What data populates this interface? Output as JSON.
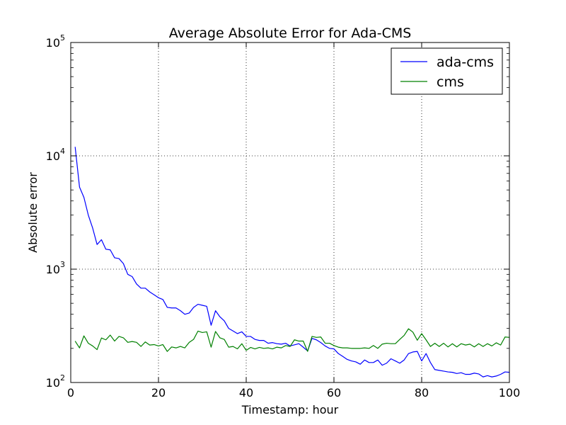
{
  "chart_data": {
    "type": "line",
    "title": "Average Absolute Error for Ada-CMS",
    "xlabel": "Timestamp: hour",
    "ylabel": "Absolute error",
    "xlim": [
      0,
      100
    ],
    "ylim": [
      100,
      100000
    ],
    "yscale": "log",
    "grid": true,
    "legend_position": "top-right",
    "xticks": [
      0,
      20,
      40,
      60,
      80,
      100
    ],
    "xtick_labels": [
      "0",
      "20",
      "40",
      "60",
      "80",
      "100"
    ],
    "yticks": [
      100,
      1000,
      10000,
      100000
    ],
    "ytick_labels": [
      {
        "base": "10",
        "exp": "2"
      },
      {
        "base": "10",
        "exp": "3"
      },
      {
        "base": "10",
        "exp": "4"
      },
      {
        "base": "10",
        "exp": "5"
      }
    ],
    "x": [
      1,
      2,
      3,
      4,
      5,
      6,
      7,
      8,
      9,
      10,
      11,
      12,
      13,
      14,
      15,
      16,
      17,
      18,
      19,
      20,
      21,
      22,
      23,
      24,
      25,
      26,
      27,
      28,
      29,
      30,
      31,
      32,
      33,
      34,
      35,
      36,
      37,
      38,
      39,
      40,
      41,
      42,
      43,
      44,
      45,
      46,
      47,
      48,
      49,
      50,
      51,
      52,
      53,
      54,
      55,
      56,
      57,
      58,
      59,
      60,
      61,
      62,
      63,
      64,
      65,
      66,
      67,
      68,
      69,
      70,
      71,
      72,
      73,
      74,
      75,
      76,
      77,
      78,
      79,
      80,
      81,
      82,
      83,
      84,
      85,
      86,
      87,
      88,
      89,
      90,
      91,
      92,
      93,
      94,
      95,
      96,
      97,
      98,
      99,
      100
    ],
    "series": [
      {
        "name": "ada-cms",
        "color": "#0000ff",
        "values": [
          12000,
          5300,
          4300,
          3000,
          2300,
          1650,
          1820,
          1500,
          1480,
          1260,
          1240,
          1120,
          900,
          860,
          740,
          680,
          680,
          630,
          595,
          560,
          540,
          460,
          455,
          455,
          430,
          400,
          410,
          460,
          490,
          480,
          470,
          320,
          430,
          380,
          350,
          300,
          285,
          270,
          280,
          255,
          255,
          240,
          235,
          235,
          222,
          225,
          220,
          218,
          222,
          210,
          215,
          220,
          205,
          190,
          245,
          238,
          225,
          210,
          200,
          198,
          180,
          170,
          160,
          155,
          152,
          145,
          158,
          150,
          150,
          158,
          142,
          148,
          162,
          155,
          148,
          158,
          180,
          186,
          188,
          155,
          180,
          150,
          130,
          128,
          126,
          124,
          123,
          120,
          122,
          118,
          118,
          121,
          119,
          112,
          115,
          112,
          114,
          118,
          124,
          123
        ]
      },
      {
        "name": "cms",
        "color": "#008000",
        "values": [
          232,
          202,
          258,
          222,
          210,
          195,
          247,
          238,
          262,
          232,
          255,
          248,
          226,
          230,
          226,
          208,
          228,
          214,
          216,
          210,
          216,
          188,
          206,
          202,
          208,
          202,
          226,
          240,
          284,
          276,
          280,
          205,
          282,
          248,
          240,
          205,
          208,
          198,
          220,
          192,
          204,
          198,
          204,
          200,
          202,
          198,
          205,
          202,
          212,
          208,
          238,
          232,
          232,
          188,
          255,
          250,
          252,
          222,
          222,
          212,
          205,
          202,
          202,
          200,
          200,
          200,
          202,
          200,
          212,
          200,
          218,
          222,
          220,
          220,
          240,
          260,
          298,
          278,
          236,
          270,
          238,
          208,
          222,
          208,
          222,
          206,
          220,
          206,
          220,
          214,
          218,
          206,
          220,
          208,
          220,
          210,
          224,
          214,
          252,
          250
        ]
      }
    ]
  }
}
